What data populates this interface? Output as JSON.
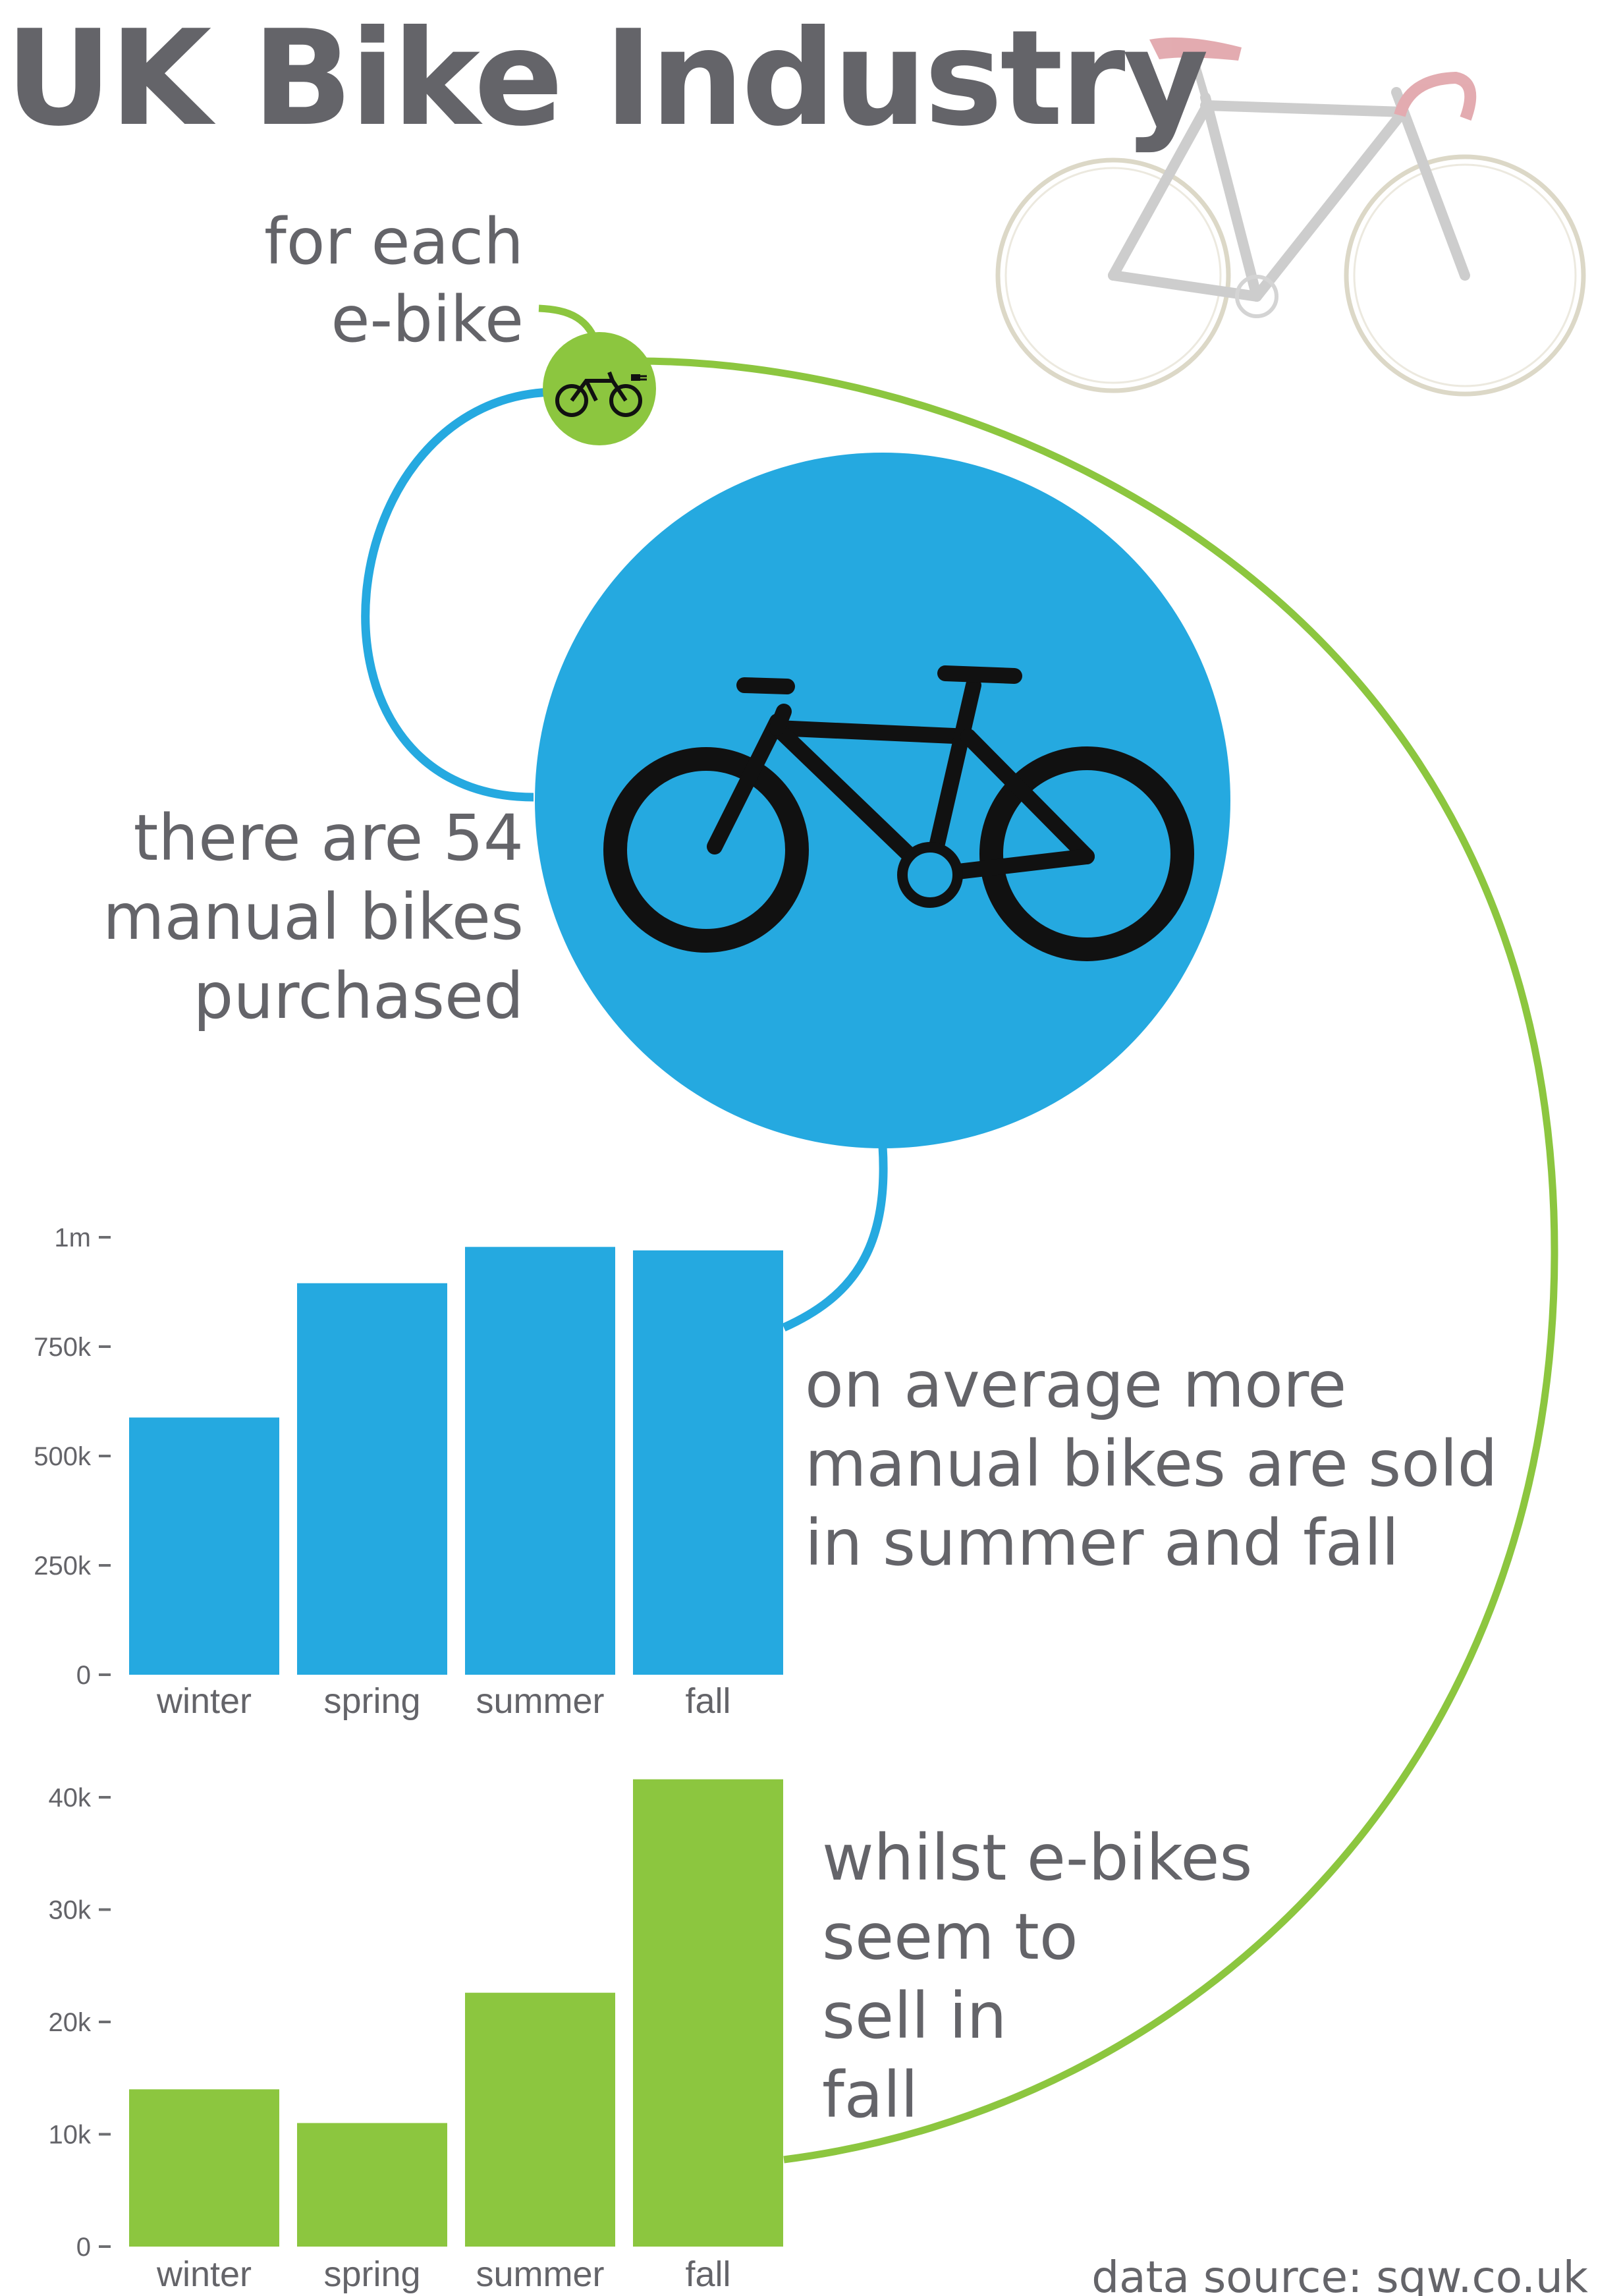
{
  "title": "UK Bike Industry",
  "lead_lines": [
    "for each",
    "e-bike"
  ],
  "manual_lines": [
    "there are 54",
    "manual bikes",
    "purchased"
  ],
  "note1_lines": [
    "on average more",
    "manual bikes are sold",
    "in summer and fall"
  ],
  "note2_lines": [
    "whilst e-bikes",
    "seem to",
    "sell in",
    "fall"
  ],
  "source": "data source: sqw.co.uk",
  "colors": {
    "manual": "#25a9e0",
    "ebike": "#8cc63f",
    "text": "#646469",
    "axis": "#6d6e71"
  },
  "icons": {
    "hero": "road-bike-icon",
    "ebike": "electric-bike-icon",
    "manual": "bicycle-icon"
  },
  "chart_data": [
    {
      "type": "bar",
      "name": "manual",
      "categories": [
        "winter",
        "spring",
        "summer",
        "fall"
      ],
      "values": [
        588000,
        895000,
        978000,
        970000
      ],
      "ylim": [
        0,
        1000000
      ],
      "yticks": [
        0,
        250000,
        500000,
        750000,
        1000000
      ],
      "ytick_labels": [
        "0",
        "250k",
        "500k",
        "750k",
        "1m"
      ],
      "grid": false
    },
    {
      "type": "bar",
      "name": "ebike",
      "categories": [
        "winter",
        "spring",
        "summer",
        "fall"
      ],
      "values": [
        14000,
        11000,
        22600,
        41600
      ],
      "ylim": [
        0,
        40000
      ],
      "yticks": [
        0,
        10000,
        20000,
        30000,
        40000
      ],
      "ytick_labels": [
        "0",
        "10k",
        "20k",
        "30k",
        "40k"
      ],
      "grid": false
    }
  ]
}
